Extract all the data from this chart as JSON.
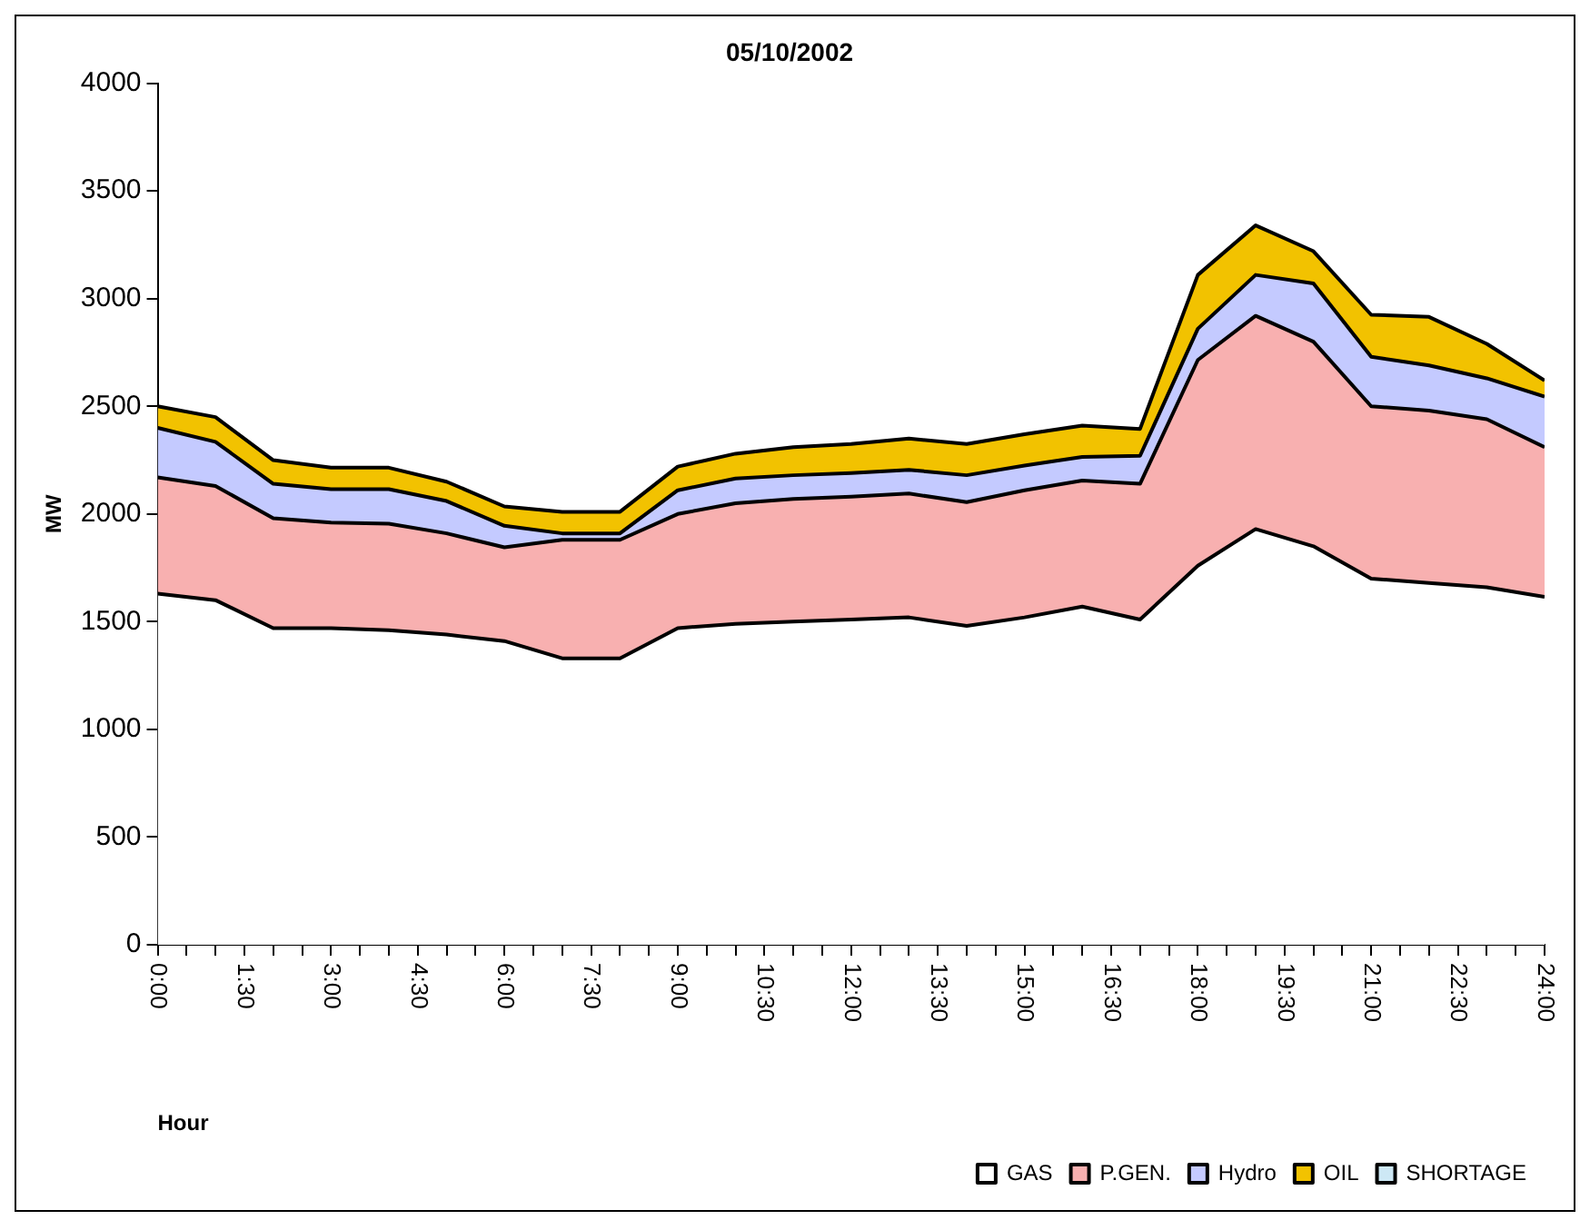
{
  "chart_data": {
    "type": "area",
    "title": "05/10/2002",
    "xlabel": "Hour",
    "ylabel": "MW",
    "stacked": true,
    "legend": "bottom right",
    "grid": false,
    "x": [
      0,
      1,
      2,
      3,
      4,
      5,
      6,
      7,
      8,
      9,
      10,
      11,
      12,
      13,
      14,
      15,
      16,
      17,
      18,
      19,
      20,
      21,
      22,
      23,
      24
    ],
    "xlim": [
      0,
      24
    ],
    "xticks": [
      {
        "value": 0,
        "label": "0:00"
      },
      {
        "value": 0.5,
        "label": null
      },
      {
        "value": 1,
        "label": null
      },
      {
        "value": 1.5,
        "label": "1:30"
      },
      {
        "value": 2,
        "label": null
      },
      {
        "value": 2.5,
        "label": null
      },
      {
        "value": 3,
        "label": "3:00"
      },
      {
        "value": 3.5,
        "label": null
      },
      {
        "value": 4,
        "label": null
      },
      {
        "value": 4.5,
        "label": "4:30"
      },
      {
        "value": 5,
        "label": null
      },
      {
        "value": 5.5,
        "label": null
      },
      {
        "value": 6,
        "label": "6:00"
      },
      {
        "value": 6.5,
        "label": null
      },
      {
        "value": 7,
        "label": null
      },
      {
        "value": 7.5,
        "label": "7:30"
      },
      {
        "value": 8,
        "label": null
      },
      {
        "value": 8.5,
        "label": null
      },
      {
        "value": 9,
        "label": "9:00"
      },
      {
        "value": 9.5,
        "label": null
      },
      {
        "value": 10,
        "label": null
      },
      {
        "value": 10.5,
        "label": "10:30"
      },
      {
        "value": 11,
        "label": null
      },
      {
        "value": 11.5,
        "label": null
      },
      {
        "value": 12,
        "label": "12:00"
      },
      {
        "value": 12.5,
        "label": null
      },
      {
        "value": 13,
        "label": null
      },
      {
        "value": 13.5,
        "label": "13:30"
      },
      {
        "value": 14,
        "label": null
      },
      {
        "value": 14.5,
        "label": null
      },
      {
        "value": 15,
        "label": "15:00"
      },
      {
        "value": 15.5,
        "label": null
      },
      {
        "value": 16,
        "label": null
      },
      {
        "value": 16.5,
        "label": "16:30"
      },
      {
        "value": 17,
        "label": null
      },
      {
        "value": 17.5,
        "label": null
      },
      {
        "value": 18,
        "label": "18:00"
      },
      {
        "value": 18.5,
        "label": null
      },
      {
        "value": 19,
        "label": null
      },
      {
        "value": 19.5,
        "label": "19:30"
      },
      {
        "value": 20,
        "label": null
      },
      {
        "value": 20.5,
        "label": null
      },
      {
        "value": 21,
        "label": "21:00"
      },
      {
        "value": 21.5,
        "label": null
      },
      {
        "value": 22,
        "label": null
      },
      {
        "value": 22.5,
        "label": "22:30"
      },
      {
        "value": 23,
        "label": null
      },
      {
        "value": 23.5,
        "label": null
      },
      {
        "value": 24,
        "label": "24:00"
      }
    ],
    "ylim": [
      0,
      4000
    ],
    "yticks": [
      0,
      500,
      1000,
      1500,
      2000,
      2500,
      3000,
      3500,
      4000
    ],
    "series": [
      {
        "name": "GAS",
        "color": "#ffffff",
        "values": [
          1630,
          1600,
          1470,
          1470,
          1460,
          1440,
          1410,
          1330,
          1330,
          1470,
          1490,
          1500,
          1510,
          1520,
          1480,
          1520,
          1570,
          1510,
          1760,
          1930,
          1850,
          1700,
          1680,
          1660,
          1615
        ]
      },
      {
        "name": "P.GEN.",
        "color": "#f8b0b0",
        "values": [
          540,
          530,
          510,
          490,
          495,
          470,
          435,
          550,
          550,
          530,
          560,
          570,
          570,
          575,
          575,
          590,
          585,
          630,
          955,
          990,
          950,
          800,
          800,
          780,
          695
        ]
      },
      {
        "name": "Hydro",
        "color": "#c4caff",
        "values": [
          230,
          205,
          160,
          155,
          160,
          150,
          100,
          30,
          30,
          110,
          115,
          110,
          110,
          110,
          125,
          115,
          110,
          130,
          145,
          190,
          270,
          230,
          210,
          190,
          235
        ]
      },
      {
        "name": "OIL",
        "color": "#f2c200",
        "values": [
          100,
          115,
          110,
          100,
          100,
          90,
          90,
          100,
          100,
          110,
          115,
          130,
          135,
          145,
          145,
          145,
          145,
          125,
          250,
          230,
          150,
          195,
          225,
          160,
          75
        ]
      },
      {
        "name": "SHORTAGE",
        "color": "#cde8f5",
        "values": [
          null,
          null,
          null,
          null,
          null,
          null,
          null,
          null,
          null,
          null,
          null,
          null,
          null,
          null,
          null,
          null,
          null,
          null,
          null,
          null,
          null,
          null,
          null,
          null,
          null
        ]
      }
    ]
  }
}
